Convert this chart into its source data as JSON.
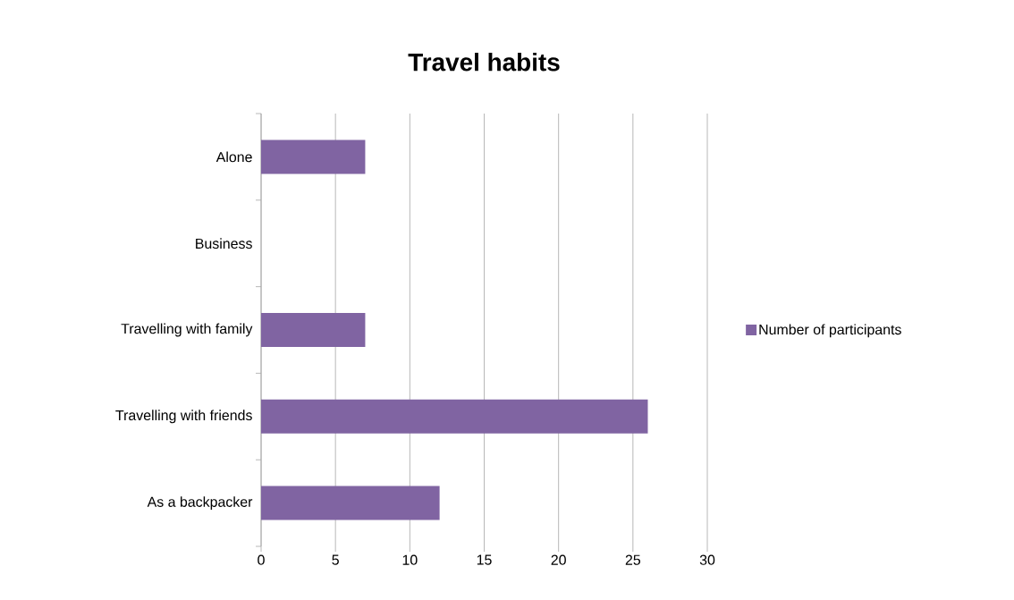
{
  "chart_data": {
    "type": "bar",
    "orientation": "horizontal",
    "title": "Travel habits",
    "categories": [
      "Alone",
      "Business",
      "Travelling with family",
      "Travelling with friends",
      "As a backpacker"
    ],
    "series": [
      {
        "name": "Number of participants",
        "color": "#8064a2",
        "values": [
          7,
          0,
          7,
          26,
          12
        ]
      }
    ],
    "xlim": [
      0,
      30
    ],
    "xticks": [
      0,
      5,
      10,
      15,
      20,
      25,
      30
    ],
    "grid": "x",
    "legend": "right"
  }
}
